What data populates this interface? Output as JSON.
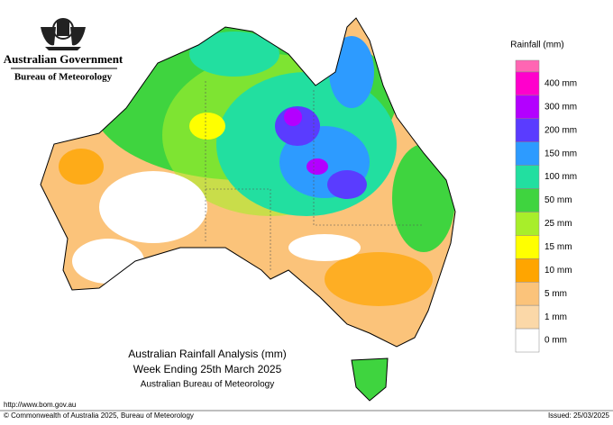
{
  "header": {
    "title": "Australian Government",
    "subtitle": "Bureau of Meteorology"
  },
  "legend": {
    "title": "Rainfall (mm)",
    "items": [
      {
        "label": "400 mm",
        "color": "#ff00cc"
      },
      {
        "label": "300 mm",
        "color": "#b300ff"
      },
      {
        "label": "200 mm",
        "color": "#5a3cff"
      },
      {
        "label": "150 mm",
        "color": "#2d9bff"
      },
      {
        "label": "100 mm",
        "color": "#22dfa0"
      },
      {
        "label": "50 mm",
        "color": "#3fd43f"
      },
      {
        "label": "25 mm",
        "color": "#a8ee2a"
      },
      {
        "label": "15 mm",
        "color": "#ffff00"
      },
      {
        "label": "10 mm",
        "color": "#ffa500"
      },
      {
        "label": "5 mm",
        "color": "#fbc37a"
      },
      {
        "label": "1 mm",
        "color": "#fbd8a8"
      },
      {
        "label": "0 mm",
        "color": "#ffffff"
      }
    ],
    "top_color": "#ff66b3"
  },
  "map_title": {
    "line1": "Australian Rainfall Analysis (mm)",
    "line2": "Week Ending 25th March 2025",
    "line3": "Australian Bureau of Meteorology"
  },
  "footer": {
    "url": "http://www.bom.gov.au",
    "copyright": "© Commonwealth of Australia 2025, Bureau of Meteorology",
    "issued": "Issued: 25/03/2025"
  }
}
